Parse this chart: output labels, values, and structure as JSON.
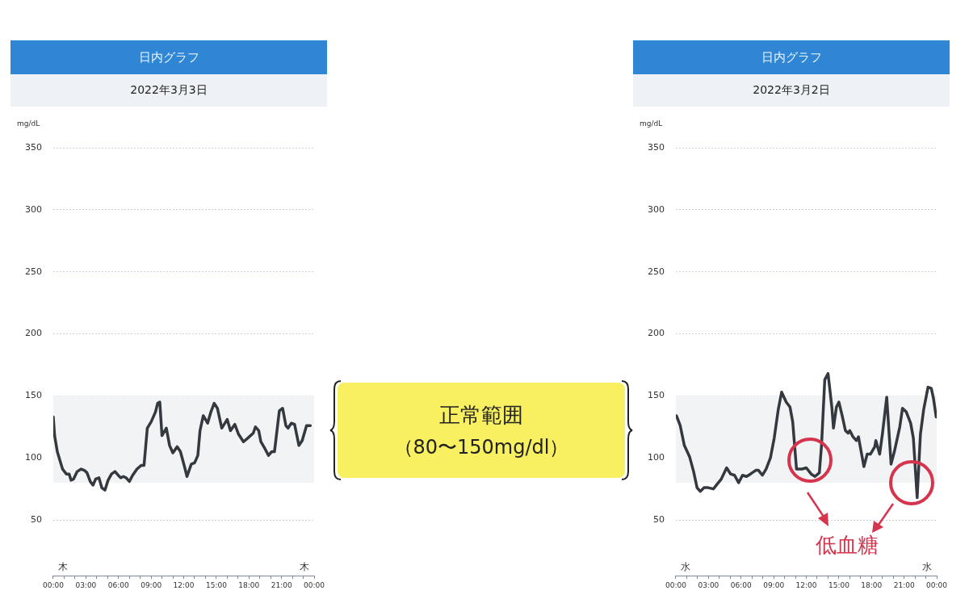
{
  "chart_data": [
    {
      "type": "line",
      "title": "日内グラフ",
      "subtitle": "2022年3月3日",
      "ylabel": "mg/dL",
      "color": "#33393f",
      "grid": "y",
      "marker": "none",
      "line_style": "solid",
      "xlim": [
        0,
        24
      ],
      "ylim": [
        5,
        350
      ],
      "yticks": [
        50,
        100,
        150,
        200,
        250,
        300,
        350
      ],
      "xticks": [
        {
          "value": 0,
          "label": "00:00"
        },
        {
          "value": 1,
          "label": null
        },
        {
          "value": 2,
          "label": null
        },
        {
          "value": 3,
          "label": "03:00"
        },
        {
          "value": 4,
          "label": null
        },
        {
          "value": 5,
          "label": null
        },
        {
          "value": 6,
          "label": "06:00"
        },
        {
          "value": 7,
          "label": null
        },
        {
          "value": 8,
          "label": null
        },
        {
          "value": 9,
          "label": "09:00"
        },
        {
          "value": 10,
          "label": null
        },
        {
          "value": 11,
          "label": null
        },
        {
          "value": 12,
          "label": "12:00"
        },
        {
          "value": 13,
          "label": null
        },
        {
          "value": 14,
          "label": null
        },
        {
          "value": 15,
          "label": "15:00"
        },
        {
          "value": 16,
          "label": null
        },
        {
          "value": 17,
          "label": null
        },
        {
          "value": 18,
          "label": "18:00"
        },
        {
          "value": 19,
          "label": null
        },
        {
          "value": 20,
          "label": null
        },
        {
          "value": 21,
          "label": "21:00"
        },
        {
          "value": 22,
          "label": null
        },
        {
          "value": 23,
          "label": null
        },
        {
          "value": 24,
          "label": "00:00"
        }
      ],
      "bands": [
        {
          "axis": "y",
          "from": 80,
          "to": 150,
          "color": "#f1f3f4"
        }
      ],
      "annotations": [
        "木",
        "木"
      ],
      "x": [
        0,
        0.12,
        0.37,
        0.85,
        1.2,
        1.46,
        1.63,
        1.87,
        2.2,
        2.56,
        2.85,
        3.1,
        3.4,
        3.65,
        3.9,
        4.2,
        4.46,
        4.75,
        5.04,
        5.36,
        5.68,
        5.97,
        6.2,
        6.45,
        6.7,
        7.0,
        7.3,
        7.7,
        8.1,
        8.35,
        8.65,
        9.0,
        9.4,
        9.6,
        9.8,
        10.0,
        10.4,
        10.7,
        11.0,
        11.4,
        11.7,
        12.1,
        12.3,
        12.7,
        13.0,
        13.3,
        13.5,
        13.8,
        14.2,
        14.5,
        14.8,
        15.1,
        15.5,
        16.0,
        16.3,
        16.7,
        17.05,
        17.5,
        17.9,
        18.4,
        18.6,
        18.9,
        19.1,
        19.5,
        19.8,
        20.1,
        20.35,
        20.8,
        21.1,
        21.4,
        21.6,
        21.9,
        22.2,
        22.6,
        22.9,
        23.3,
        23.65
      ],
      "values": [
        133,
        118,
        105,
        91,
        87,
        87,
        82,
        83,
        89,
        91,
        90,
        88,
        81,
        78,
        83,
        84,
        76,
        74,
        82,
        87,
        89,
        86,
        84,
        85,
        84,
        81,
        86,
        91,
        94,
        94,
        124,
        129,
        137,
        144,
        145,
        118,
        124,
        110,
        104,
        109,
        105,
        92,
        85,
        95,
        96,
        102,
        122,
        134,
        128,
        137,
        144,
        140,
        124,
        131,
        122,
        127,
        119,
        113,
        116,
        120,
        125,
        122,
        113,
        107,
        102,
        105,
        105,
        138,
        140,
        126,
        124,
        128,
        127,
        110,
        114,
        126,
        126
      ]
    },
    {
      "type": "other",
      "title": "正常範囲",
      "subtitle": "（80〜150mg/dl）"
    },
    {
      "type": "line",
      "title": "日内グラフ",
      "subtitle": "2022年3月2日",
      "ylabel": "mg/dL",
      "color": "#33393f",
      "grid": "y",
      "marker": "none",
      "line_style": "solid",
      "xlim": [
        0,
        24
      ],
      "ylim": [
        5,
        350
      ],
      "yticks": [
        50,
        100,
        150,
        200,
        250,
        300,
        350
      ],
      "xticks": [
        {
          "value": 0,
          "label": "00:00"
        },
        {
          "value": 1,
          "label": null
        },
        {
          "value": 2,
          "label": null
        },
        {
          "value": 3,
          "label": "03:00"
        },
        {
          "value": 4,
          "label": null
        },
        {
          "value": 5,
          "label": null
        },
        {
          "value": 6,
          "label": "06:00"
        },
        {
          "value": 7,
          "label": null
        },
        {
          "value": 8,
          "label": null
        },
        {
          "value": 9,
          "label": "09:00"
        },
        {
          "value": 10,
          "label": null
        },
        {
          "value": 11,
          "label": null
        },
        {
          "value": 12,
          "label": "12:00"
        },
        {
          "value": 13,
          "label": null
        },
        {
          "value": 14,
          "label": null
        },
        {
          "value": 15,
          "label": "15:00"
        },
        {
          "value": 16,
          "label": null
        },
        {
          "value": 17,
          "label": null
        },
        {
          "value": 18,
          "label": "18:00"
        },
        {
          "value": 19,
          "label": null
        },
        {
          "value": 20,
          "label": null
        },
        {
          "value": 21,
          "label": "21:00"
        },
        {
          "value": 22,
          "label": null
        },
        {
          "value": 23,
          "label": null
        },
        {
          "value": 24,
          "label": "00:00"
        }
      ],
      "bands": [
        {
          "axis": "y",
          "from": 80,
          "to": 150,
          "color": "#f1f3f4"
        }
      ],
      "annotations": [
        "水",
        "水",
        "低血糖"
      ],
      "x": [
        0.05,
        0.4,
        0.78,
        1.26,
        1.63,
        1.95,
        2.24,
        2.6,
        2.97,
        3.45,
        3.82,
        4.18,
        4.67,
        5.04,
        5.4,
        5.77,
        6.13,
        6.5,
        6.86,
        7.35,
        7.6,
        7.96,
        8.3,
        8.7,
        9.05,
        9.42,
        9.73,
        10.15,
        10.5,
        10.75,
        11.1,
        11.6,
        12.0,
        12.45,
        12.8,
        13.2,
        13.4,
        13.7,
        14.0,
        14.35,
        14.5,
        14.77,
        15.0,
        15.3,
        15.6,
        15.85,
        16.0,
        16.3,
        16.6,
        16.8,
        17.3,
        17.6,
        17.9,
        18.3,
        18.4,
        18.75,
        19.0,
        19.4,
        19.8,
        20.1,
        20.6,
        20.85,
        21.2,
        21.6,
        21.85,
        22.2,
        22.5,
        22.8,
        23.2,
        23.5,
        23.7,
        23.95
      ],
      "values": [
        134,
        126,
        110,
        101,
        89,
        76,
        73,
        76,
        76,
        75,
        79,
        83,
        92,
        87,
        86,
        80,
        86,
        85,
        87,
        90,
        90,
        86,
        91,
        100,
        116,
        139,
        153,
        145,
        141,
        129,
        91,
        91,
        92,
        87,
        85,
        88,
        110,
        163,
        168,
        141,
        124,
        141,
        145,
        134,
        122,
        120,
        122,
        117,
        114,
        117,
        93,
        103,
        103,
        109,
        114,
        103,
        119,
        149,
        95,
        105,
        125,
        140,
        137,
        128,
        116,
        68,
        119,
        139,
        157,
        156,
        148,
        133
      ]
    }
  ]
}
